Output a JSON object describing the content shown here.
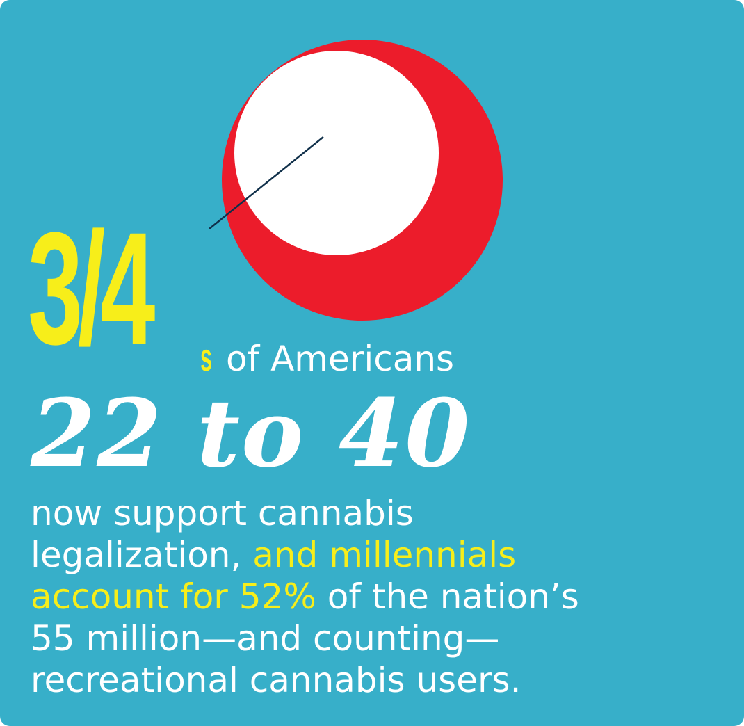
{
  "colors": {
    "background": "#37afc9",
    "accent_yellow": "#f7ee1a",
    "circle_red": "#ec1c2b",
    "circle_white": "#ffffff",
    "pointer_line": "#10304a",
    "text_white": "#ffffff"
  },
  "fraction_value": 0.75,
  "headline": {
    "fraction": "3/4",
    "suffix": "s",
    "subject": "of Americans",
    "age_range": "22 to 40"
  },
  "body": {
    "lines": [
      [
        {
          "text": "now support cannabis",
          "highlight": false
        }
      ],
      [
        {
          "text": "legalization, ",
          "highlight": false
        },
        {
          "text": "and millennials",
          "highlight": true
        }
      ],
      [
        {
          "text": "account for 52%",
          "highlight": true
        },
        {
          "text": " of the nation’s",
          "highlight": false
        }
      ],
      [
        {
          "text": "55 million—and counting—",
          "highlight": false
        }
      ],
      [
        {
          "text": "recreational cannabis users.",
          "highlight": false
        }
      ]
    ]
  }
}
